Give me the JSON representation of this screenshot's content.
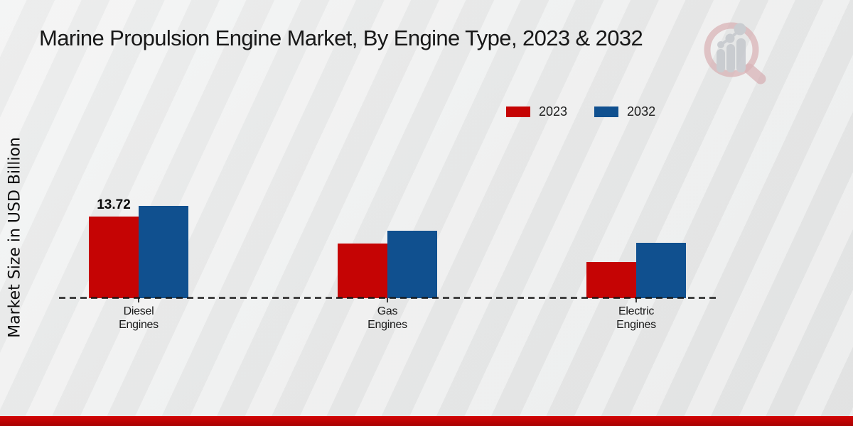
{
  "header": {
    "title": "Marine Propulsion Engine Market, By Engine Type, 2023 & 2032"
  },
  "colors": {
    "accent_red": "#c50404",
    "accent_blue": "#10508f",
    "footer_bar": "#c00404",
    "logo_ring": "#d2a3a8",
    "logo_gray": "#c5c8cd"
  },
  "chart_data": {
    "type": "bar",
    "title": "Marine Propulsion Engine Market, By Engine Type, 2023 & 2032",
    "xlabel": "",
    "ylabel": "Market Size in USD Billion",
    "categories": [
      "Diesel Engines",
      "Gas Engines",
      "Electric Engines"
    ],
    "series": [
      {
        "name": "2023",
        "color": "#c50404",
        "values": [
          13.72,
          9.2,
          6.1
        ],
        "value_labels": [
          "13.72",
          "",
          ""
        ]
      },
      {
        "name": "2032",
        "color": "#10508f",
        "values": [
          15.5,
          11.3,
          9.3
        ],
        "value_labels": [
          "",
          "",
          ""
        ]
      }
    ],
    "baseline": 0,
    "grid": "dashed-zero-line-only",
    "legend_position": "top-right"
  }
}
